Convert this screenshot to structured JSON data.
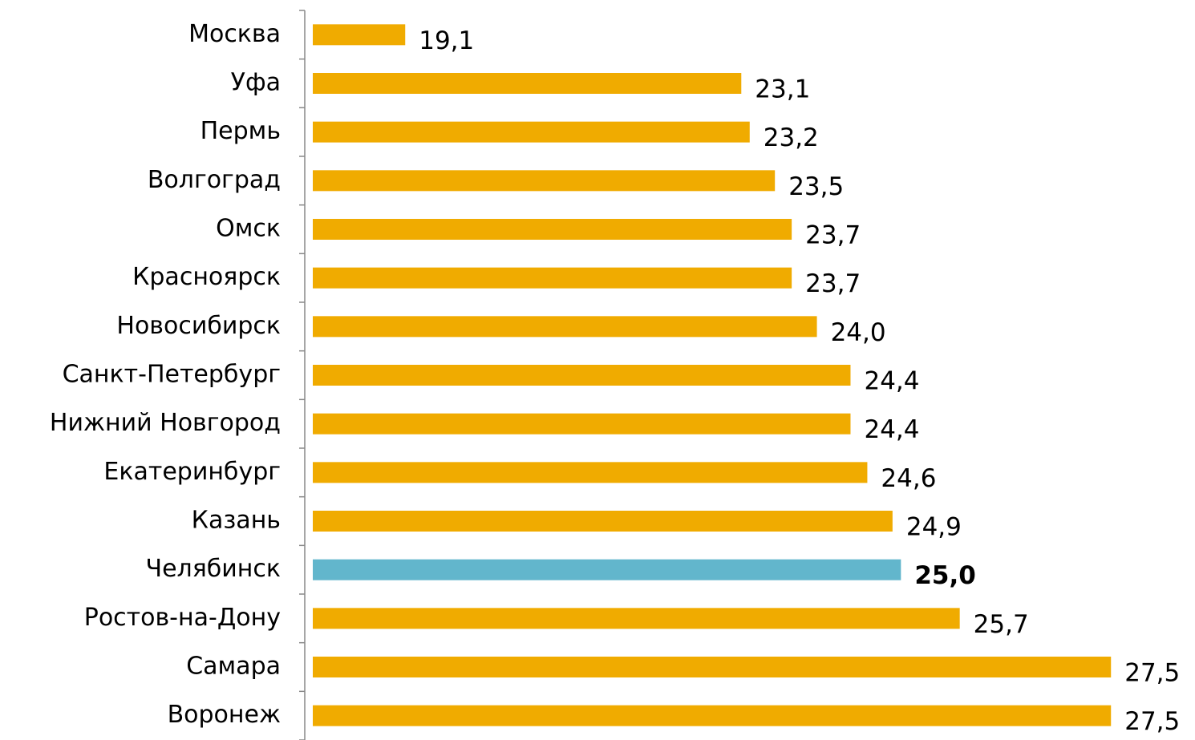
{
  "chart_data": {
    "type": "bar",
    "orientation": "horizontal",
    "categories": [
      "Москва",
      "Уфа",
      "Пермь",
      "Волгоград",
      "Омск",
      "Красноярск",
      "Новосибирск",
      "Санкт-Петербург",
      "Нижний Новгород",
      "Екатеринбург",
      "Казань",
      "Челябинск",
      "Ростов-на-Дону",
      "Самара",
      "Воронеж"
    ],
    "values": [
      19.1,
      23.1,
      23.2,
      23.5,
      23.7,
      23.7,
      24.0,
      24.4,
      24.4,
      24.6,
      24.9,
      25.0,
      25.7,
      27.5,
      27.5
    ],
    "value_labels": [
      "19,1",
      "23,1",
      "23,2",
      "23,5",
      "23,7",
      "23,7",
      "24,0",
      "24,4",
      "24,4",
      "24,6",
      "24,9",
      "25,0",
      "25,7",
      "27,5",
      "27,5"
    ],
    "color": "#f0ab00",
    "colors": [
      "#f0ab00",
      "#f0ab00",
      "#f0ab00",
      "#f0ab00",
      "#f0ab00",
      "#f0ab00",
      "#f0ab00",
      "#f0ab00",
      "#f0ab00",
      "#f0ab00",
      "#f0ab00",
      "#62b6cc",
      "#f0ab00",
      "#f0ab00",
      "#f0ab00"
    ],
    "xlim": [
      18,
      28.5
    ]
  }
}
